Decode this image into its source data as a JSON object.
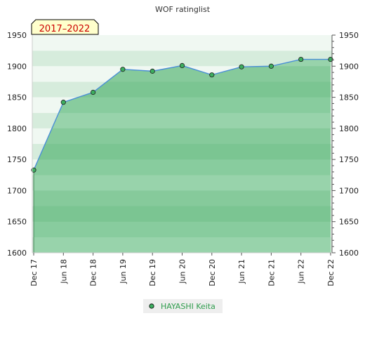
{
  "chart_data": {
    "type": "area",
    "title": "WOF ratinglist",
    "badge": "2017–2022",
    "categories": [
      "Dec 17",
      "Jun 18",
      "Dec 18",
      "Jun 19",
      "Dec 19",
      "Jun 20",
      "Dec 20",
      "Jun 21",
      "Dec 21",
      "Jun 22",
      "Dec 22"
    ],
    "series": [
      {
        "name": "HAYASHI Keita",
        "values": [
          1733,
          1842,
          1858,
          1895,
          1892,
          1901,
          1886,
          1899,
          1900,
          1911,
          1911
        ]
      }
    ],
    "ylim": [
      1600,
      1950
    ],
    "yticks": [
      1600,
      1650,
      1700,
      1750,
      1800,
      1850,
      1900,
      1950
    ],
    "grid": true,
    "legend": "bottom-center",
    "colors": {
      "fill": "#82c698",
      "line": "#4b8fd6",
      "marker": "#3cae5f",
      "band_light": "#f0f8f2",
      "band_dark": "#d6ecdc",
      "badge_bg": "#ffffcc",
      "badge_text": "#cc0000",
      "legend_text": "#2e9c4c"
    }
  }
}
